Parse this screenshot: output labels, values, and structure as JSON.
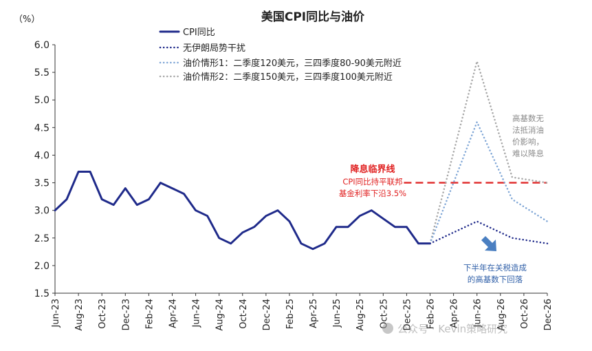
{
  "chart_data": {
    "type": "line",
    "title": "美国CPI同比与油价",
    "ylabel": "（%）",
    "ylim": [
      1.5,
      6.0
    ],
    "yticks": [
      "6.0",
      "5.5",
      "5.0",
      "4.5",
      "4.0",
      "3.5",
      "3.0",
      "2.5",
      "2.0",
      "1.5"
    ],
    "ytick_values": [
      6.0,
      5.5,
      5.0,
      4.5,
      4.0,
      3.5,
      3.0,
      2.5,
      2.0,
      1.5
    ],
    "grid": false,
    "legend_placement": "top-left",
    "x_tick_labels": [
      "Jun-23",
      "Aug-23",
      "Oct-23",
      "Dec-23",
      "Feb-24",
      "Apr-24",
      "Jun-24",
      "Aug-24",
      "Oct-24",
      "Dec-24",
      "Feb-25",
      "Apr-25",
      "Jun-25",
      "Aug-25",
      "Oct-25",
      "Dec-25",
      "Feb-26",
      "Apr-26",
      "Jun-26",
      "Aug-26",
      "Oct-26",
      "Dec-26"
    ],
    "series": [
      {
        "name": "CPI同比",
        "color": "#1f2a8a",
        "style": "solid",
        "x": [
          "2023-06",
          "2023-07",
          "2023-08",
          "2023-09",
          "2023-10",
          "2023-11",
          "2023-12",
          "2024-01",
          "2024-02",
          "2024-03",
          "2024-04",
          "2024-05",
          "2024-06",
          "2024-07",
          "2024-08",
          "2024-09",
          "2024-10",
          "2024-11",
          "2024-12",
          "2025-01",
          "2025-02",
          "2025-03",
          "2025-04",
          "2025-05",
          "2025-06",
          "2025-07",
          "2025-08",
          "2025-09",
          "2025-10",
          "2025-11",
          "2025-12",
          "2026-01",
          "2026-02"
        ],
        "values": [
          3.0,
          3.2,
          3.7,
          3.7,
          3.2,
          3.1,
          3.4,
          3.1,
          3.2,
          3.5,
          3.4,
          3.3,
          3.0,
          2.9,
          2.5,
          2.4,
          2.6,
          2.7,
          2.9,
          3.0,
          2.8,
          2.4,
          2.3,
          2.4,
          2.7,
          2.7,
          2.9,
          3.0,
          2.85,
          2.7,
          2.7,
          2.4,
          2.4
        ]
      },
      {
        "name": "无伊朗局势干扰",
        "color": "#1f2a8a",
        "style": "dotted",
        "x": [
          "2026-02",
          "2026-06",
          "2026-09",
          "2026-12"
        ],
        "values": [
          2.4,
          2.8,
          2.5,
          2.4
        ]
      },
      {
        "name": "油价情形1：二季度120美元，三四季度80-90美元附近",
        "color": "#7fa6d6",
        "style": "dotted",
        "x": [
          "2026-02",
          "2026-06",
          "2026-09",
          "2026-12"
        ],
        "values": [
          2.4,
          4.6,
          3.2,
          2.8
        ]
      },
      {
        "name": "油价情形2：二季度150美元，三四季度100美元附近",
        "color": "#a6a6a6",
        "style": "dotted",
        "x": [
          "2026-02",
          "2026-06",
          "2026-09",
          "2026-12"
        ],
        "values": [
          2.4,
          5.7,
          3.6,
          3.5
        ]
      }
    ],
    "reference_line": {
      "value": 3.5,
      "color": "#e03030",
      "from": "2025-12",
      "to": "2026-12"
    },
    "annotations": {
      "threshold_title": "降息临界线",
      "threshold_line1": "CPI同比持平联邦",
      "threshold_line2": "基金利率下沿3.5%",
      "right_note_lines": [
        "高基数无",
        "法抵消油",
        "价影响，",
        "难以降息"
      ],
      "bottom_note_lines": [
        "下半年在关税造成",
        "的高基数下回落"
      ]
    },
    "watermark": "公众号 · Kevin策略研究",
    "colors": {
      "threshold_text": "#e02020",
      "right_note_text": "#8a8a8a",
      "bottom_note_text": "#2f5fa8",
      "arrow": "#4a7fc1"
    }
  }
}
